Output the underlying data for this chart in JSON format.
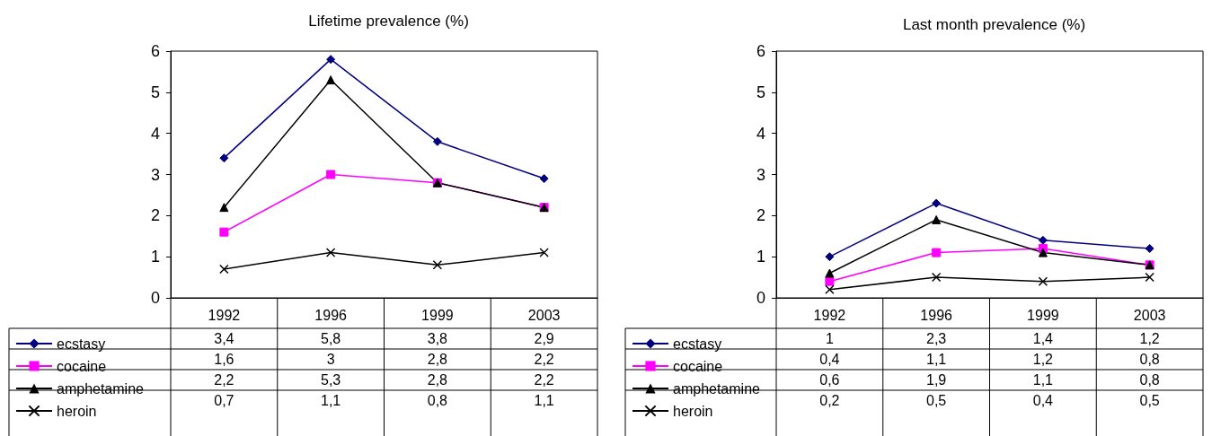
{
  "chart_data": [
    {
      "type": "line",
      "title": "Lifetime prevalence (%)",
      "categories": [
        "1992",
        "1996",
        "1999",
        "2003"
      ],
      "ylim": [
        0,
        6
      ],
      "yticks": [
        0,
        1,
        2,
        3,
        4,
        5,
        6
      ],
      "grid": false,
      "legend": "bottom left",
      "series": [
        {
          "name": "ecstasy",
          "color": "#000080",
          "marker": "diamond",
          "values": [
            3.4,
            5.8,
            3.8,
            2.9
          ],
          "value_labels": [
            "3,4",
            "5,8",
            "3,8",
            "2,9"
          ]
        },
        {
          "name": "cocaine",
          "color": "#ff00ff",
          "marker": "square",
          "values": [
            1.6,
            3,
            2.8,
            2.2
          ],
          "value_labels": [
            "1,6",
            "3",
            "2,8",
            "2,2"
          ]
        },
        {
          "name": "amphetamine",
          "color": "#000000",
          "marker": "triangle",
          "values": [
            2.2,
            5.3,
            2.8,
            2.2
          ],
          "value_labels": [
            "2,2",
            "5,3",
            "2,8",
            "2,2"
          ]
        },
        {
          "name": "heroin",
          "color": "#000000",
          "marker": "cross",
          "values": [
            0.7,
            1.1,
            0.8,
            1.1
          ],
          "value_labels": [
            "0,7",
            "1,1",
            "0,8",
            "1,1"
          ]
        }
      ]
    },
    {
      "type": "line",
      "title": "Last month prevalence (%)",
      "categories": [
        "1992",
        "1996",
        "1999",
        "2003"
      ],
      "ylim": [
        0,
        6
      ],
      "yticks": [
        0,
        1,
        2,
        3,
        4,
        5,
        6
      ],
      "grid": false,
      "legend": "bottom left",
      "series": [
        {
          "name": "ecstasy",
          "color": "#000080",
          "marker": "diamond",
          "values": [
            1,
            2.3,
            1.4,
            1.2
          ],
          "value_labels": [
            "1",
            "2,3",
            "1,4",
            "1,2"
          ]
        },
        {
          "name": "cocaine",
          "color": "#ff00ff",
          "marker": "square",
          "values": [
            0.4,
            1.1,
            1.2,
            0.8
          ],
          "value_labels": [
            "0,4",
            "1,1",
            "1,2",
            "0,8"
          ]
        },
        {
          "name": "amphetamine",
          "color": "#000000",
          "marker": "triangle",
          "values": [
            0.6,
            1.9,
            1.1,
            0.8
          ],
          "value_labels": [
            "0,6",
            "1,9",
            "1,1",
            "0,8"
          ]
        },
        {
          "name": "heroin",
          "color": "#000000",
          "marker": "cross",
          "values": [
            0.2,
            0.5,
            0.4,
            0.5
          ],
          "value_labels": [
            "0,2",
            "0,5",
            "0,4",
            "0,5"
          ]
        }
      ]
    }
  ]
}
